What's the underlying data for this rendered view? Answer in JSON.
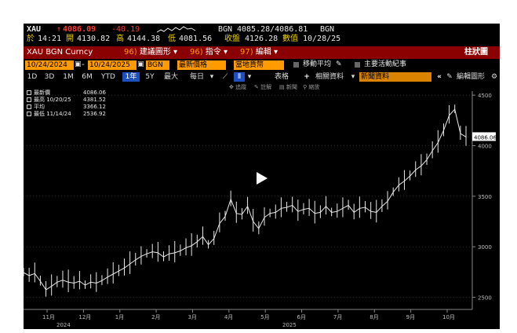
{
  "header": {
    "ticker": "XAU",
    "arrow": "↑",
    "last": "4086.09",
    "change": "-40.19",
    "source": "BGN",
    "bid_ask": "4085.28/4086.81",
    "source2": "BGN"
  },
  "stats": {
    "time_label": "於",
    "time": "14:21",
    "open_label": "開",
    "open": "4130.82",
    "high_label": "高",
    "high": "4144.38",
    "low_label": "低",
    "low": "4081.56",
    "close_label": "收盤",
    "close": "4126.28",
    "date_label": "數值",
    "date": "10/28/25"
  },
  "title_bar": {
    "security": "XAU BGN Curncy",
    "menu": [
      {
        "num": "96)",
        "label": "建議圖形"
      },
      {
        "num": "96)",
        "label": "指令"
      },
      {
        "num": "97)",
        "label": "編輯"
      }
    ],
    "right": "柱狀圖"
  },
  "controls": {
    "start_date": "10/24/2024",
    "end_date": "10/24/2025",
    "source": "BGN",
    "field": "最新價格",
    "currency": "當地貨幣",
    "moving_avg": "移動平均",
    "events": "主要活動紀事"
  },
  "toolbar": {
    "ranges": [
      "1D",
      "3D",
      "1M",
      "6M",
      "YTD",
      "1年",
      "5Y",
      "最大"
    ],
    "selected": "1年",
    "period": "每日",
    "table": "表格",
    "related": "相關資料",
    "news_placeholder": "新聞資料",
    "edit_chart": "編輯圖形",
    "subtools": [
      "追蹤",
      "註解",
      "新聞",
      "縮放"
    ]
  },
  "legend": {
    "items": [
      {
        "label": "最新價",
        "value": "4086.06"
      },
      {
        "label": "最高 10/20/25",
        "value": "4381.52"
      },
      {
        "label": "平均",
        "value": "3366.12"
      },
      {
        "label": "最低 11/14/24",
        "value": "2536.92"
      }
    ]
  },
  "chart_data": {
    "type": "line",
    "yticks": [
      2500,
      3000,
      3500,
      4000,
      4500
    ],
    "ylim": [
      2380,
      4540
    ],
    "last_label": "4086.06",
    "months": [
      "11月",
      "12月",
      "1月",
      "2月",
      "3月",
      "4月",
      "5月",
      "6月",
      "7月",
      "8月",
      "9月",
      "10月"
    ],
    "years": [
      "2024",
      "2025"
    ],
    "series": [
      {
        "values": [
          2745,
          2715,
          2735,
          2660,
          2575,
          2610,
          2650,
          2670,
          2650,
          2640,
          2660,
          2620,
          2650,
          2640,
          2665,
          2700,
          2730,
          2760,
          2790,
          2830,
          2870,
          2905,
          2930,
          2950,
          2940,
          2900,
          2930,
          2940,
          2960,
          2990,
          3010,
          3050,
          3100,
          3020,
          3080,
          3230,
          3300,
          3470,
          3330,
          3320,
          3400,
          3250,
          3180,
          3290,
          3330,
          3340,
          3380,
          3390,
          3410,
          3350,
          3370,
          3380,
          3330,
          3340,
          3400,
          3340,
          3350,
          3380,
          3410,
          3340,
          3380,
          3390,
          3350,
          3340,
          3400,
          3450,
          3540,
          3610,
          3650,
          3700,
          3760,
          3800,
          3860,
          3950,
          4030,
          4150,
          4300,
          4360,
          4120,
          4086
        ]
      }
    ]
  },
  "colors": {
    "price_up": "#ff3b30",
    "accent": "#ff9a00",
    "title_bar": "#8b0000",
    "selected": "#1e4fbf"
  }
}
